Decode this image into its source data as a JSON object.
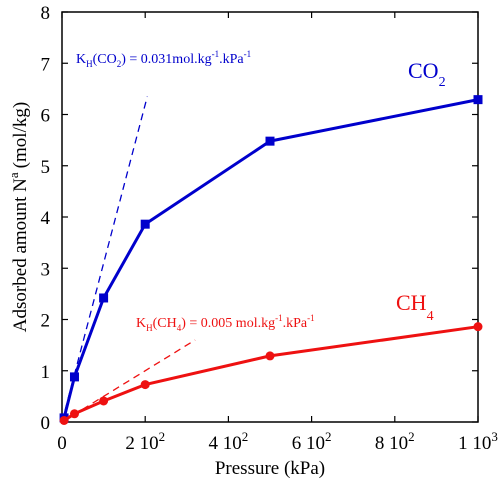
{
  "chart_data": {
    "type": "line",
    "xlabel": "Pressure (kPa)",
    "ylabel": "Adsorbed amount N",
    "ylabel_sup": "a",
    "ylabel_unit": "(mol/kg)",
    "xlim": [
      0,
      1000
    ],
    "ylim": [
      0,
      8
    ],
    "x_ticks": [
      {
        "value": 0,
        "label": "0"
      },
      {
        "value": 200,
        "label": "2 10",
        "sup": "2"
      },
      {
        "value": 400,
        "label": "4 10",
        "sup": "2"
      },
      {
        "value": 600,
        "label": "6 10",
        "sup": "2"
      },
      {
        "value": 800,
        "label": "8 10",
        "sup": "2"
      },
      {
        "value": 1000,
        "label": "1 10",
        "sup": "3"
      }
    ],
    "y_ticks": [
      0,
      1,
      2,
      3,
      4,
      5,
      6,
      7,
      8
    ],
    "grid": false,
    "series": [
      {
        "name": "CO",
        "name_sub": "2",
        "color": "#0000cc",
        "marker": "square",
        "x": [
          5,
          30,
          100,
          200,
          500,
          1000
        ],
        "y": [
          0.08,
          0.88,
          2.42,
          3.86,
          5.48,
          6.29
        ]
      },
      {
        "name": "CH",
        "name_sub": "4",
        "color": "#ee1111",
        "marker": "circle",
        "x": [
          5,
          30,
          100,
          200,
          500,
          1000
        ],
        "y": [
          0.03,
          0.16,
          0.41,
          0.73,
          1.29,
          1.86
        ]
      }
    ],
    "annotations": [
      {
        "id": "kh-co2",
        "color": "#0000cc",
        "parts": [
          "K",
          "H",
          "(CO",
          "2",
          ") = 0.031mol.kg",
          "-1",
          ".kPa",
          "-1"
        ],
        "line": {
          "x": [
            0,
            205
          ],
          "y": [
            0,
            6.35
          ]
        }
      },
      {
        "id": "kh-ch4",
        "color": "#ee1111",
        "parts": [
          "K",
          "H",
          "(CH",
          "4",
          ") = 0.005 mol.kg",
          "-1",
          ".kPa",
          "-1"
        ],
        "line": {
          "x": [
            0,
            320
          ],
          "y": [
            0,
            1.6
          ]
        }
      }
    ]
  }
}
